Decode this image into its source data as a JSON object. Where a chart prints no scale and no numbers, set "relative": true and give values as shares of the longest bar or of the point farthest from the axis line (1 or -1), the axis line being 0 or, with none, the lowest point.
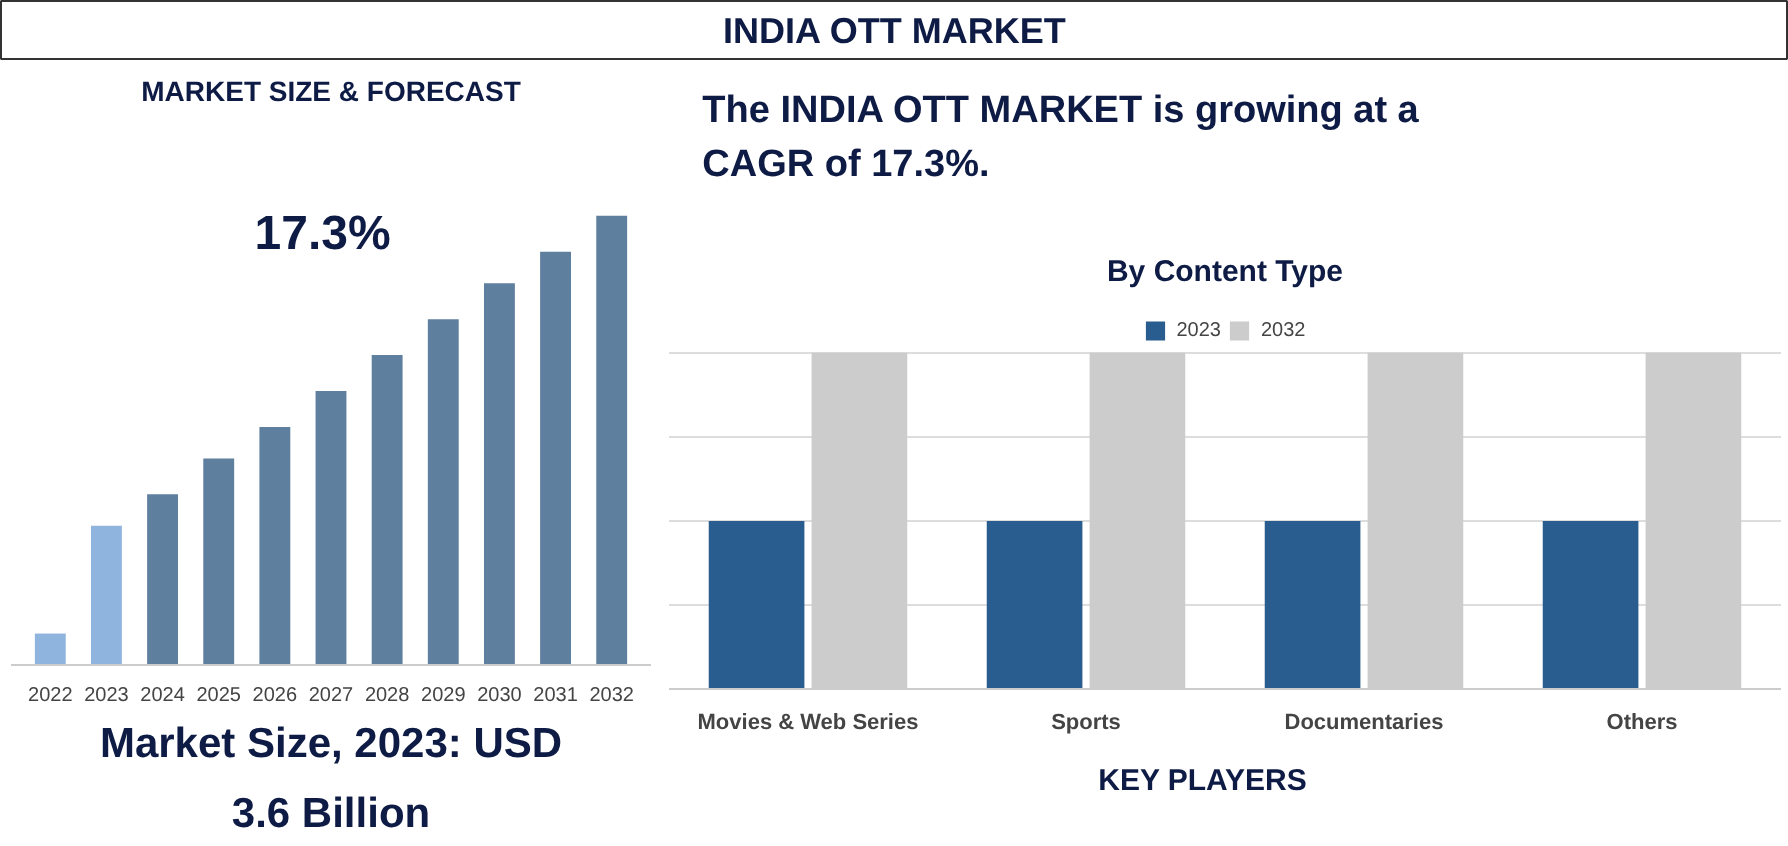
{
  "chart_data": [
    {
      "type": "other",
      "title": "INDIA OTT MARKET",
      "annotations": [
        "The INDIA OTT MARKET is growing at a CAGR of 17.3%.",
        "KEY PLAYERS"
      ]
    },
    {
      "type": "bar",
      "title": "MARKET SIZE & FORECAST",
      "categories": [
        "2022",
        "2023",
        "2024",
        "2025",
        "2026",
        "2027",
        "2028",
        "2029",
        "2030",
        "2031",
        "2032"
      ],
      "values": [
        0.07,
        0.31,
        0.38,
        0.46,
        0.53,
        0.61,
        0.69,
        0.77,
        0.85,
        0.92,
        1
      ],
      "colors": [
        "#8fb4de",
        "#8fb4de",
        "#5e7f9e",
        "#5e7f9e",
        "#5e7f9e",
        "#5e7f9e",
        "#5e7f9e",
        "#5e7f9e",
        "#5e7f9e",
        "#5e7f9e",
        "#5e7f9e"
      ],
      "relative": true,
      "annotations": [
        "17.3%",
        "Market Size, 2023: USD 3.6 Billion"
      ]
    },
    {
      "type": "bar",
      "title": "By Content Type",
      "categories": [
        "Movies & Web Series",
        "Sports",
        "Documentaries",
        "Others"
      ],
      "relative": true,
      "grid": "y",
      "legend": "top",
      "series": [
        {
          "name": "2023",
          "color": "#2a5d8f",
          "values": [
            0.5,
            0.5,
            0.5,
            0.5
          ]
        },
        {
          "name": "2032",
          "color": "#cccccc",
          "values": [
            1,
            1,
            1,
            1
          ]
        }
      ]
    }
  ]
}
